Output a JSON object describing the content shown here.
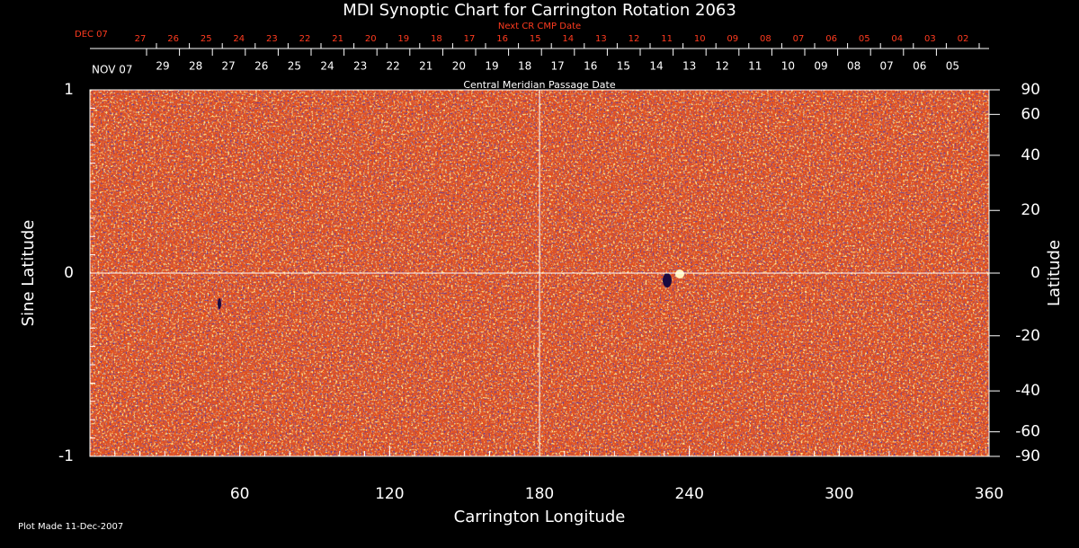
{
  "chart_data": {
    "type": "synoptic-map",
    "title": "MDI Synoptic Chart for Carrington Rotation 2063",
    "xlabel": "Carrington Longitude",
    "ylabel": "Sine Latitude",
    "y2label": "Latitude",
    "xlim": [
      0,
      360
    ],
    "xticks": [
      60,
      120,
      180,
      240,
      300,
      360
    ],
    "ylim": [
      -1,
      1
    ],
    "yticks": [
      -1,
      0,
      1
    ],
    "y2scale": "sine",
    "y2ticks": [
      90,
      60,
      40,
      20,
      0,
      -20,
      -40,
      -60,
      -90
    ],
    "next_cmp_axis": {
      "title": "Next CR CMP Date",
      "month": "DEC 07",
      "days": [
        "27",
        "26",
        "25",
        "24",
        "23",
        "22",
        "21",
        "20",
        "19",
        "18",
        "17",
        "16",
        "15",
        "14",
        "13",
        "12",
        "11",
        "10",
        "09",
        "08",
        "07",
        "06",
        "05",
        "04",
        "03",
        "02"
      ]
    },
    "cmp_axis": {
      "title": "Central Meridian Passage Date",
      "month": "NOV 07",
      "days": [
        "29",
        "28",
        "27",
        "26",
        "25",
        "24",
        "23",
        "22",
        "21",
        "20",
        "19",
        "18",
        "17",
        "16",
        "15",
        "14",
        "13",
        "12",
        "11",
        "10",
        "09",
        "08",
        "07",
        "06",
        "05"
      ]
    },
    "footnote": "Plot Made 11-Dec-2007"
  }
}
